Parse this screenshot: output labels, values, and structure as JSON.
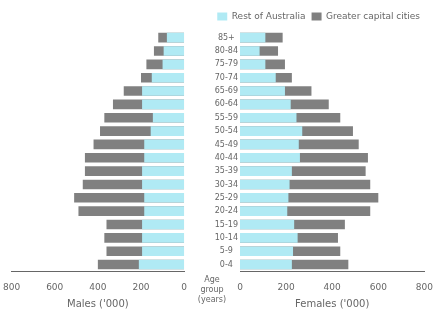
{
  "chart_data": [
    {
      "type": "bar",
      "orientation": "horizontal",
      "stacked": false,
      "categories": [
        "0-4",
        "5-9",
        "10-14",
        "15-19",
        "20-24",
        "25-29",
        "30-34",
        "35-39",
        "40-44",
        "45-49",
        "50-54",
        "55-59",
        "60-64",
        "65-69",
        "70-74",
        "75-79",
        "80-84",
        "85+"
      ],
      "series": [
        {
          "name": "Greater capital cities",
          "color": "#808080",
          "values": [
            400,
            360,
            370,
            360,
            490,
            510,
            470,
            460,
            460,
            420,
            390,
            370,
            330,
            280,
            200,
            175,
            140,
            120
          ]
        },
        {
          "name": "Rest of Australia",
          "color": "#b0eaf4",
          "values": [
            210,
            195,
            195,
            195,
            185,
            185,
            195,
            195,
            185,
            185,
            155,
            145,
            195,
            195,
            150,
            100,
            95,
            80
          ]
        }
      ],
      "xlabel": "Males ('000)",
      "xlim": [
        800,
        0
      ],
      "xticks": [
        800,
        600,
        400,
        200,
        0
      ],
      "grid": false,
      "tick_labels": "x"
    },
    {
      "type": "bar",
      "orientation": "horizontal",
      "stacked": false,
      "categories": [
        "0-4",
        "5-9",
        "10-14",
        "15-19",
        "20-24",
        "25-29",
        "30-34",
        "35-39",
        "40-44",
        "45-49",
        "50-54",
        "55-59",
        "60-64",
        "65-69",
        "70-74",
        "75-79",
        "80-84",
        "85+"
      ],
      "series": [
        {
          "name": "Greater capital cities",
          "color": "#808080",
          "values": [
            470,
            435,
            425,
            455,
            565,
            600,
            565,
            545,
            555,
            515,
            490,
            435,
            385,
            310,
            225,
            195,
            165,
            185
          ]
        },
        {
          "name": "Rest of Australia",
          "color": "#b0eaf4",
          "values": [
            225,
            230,
            250,
            235,
            205,
            210,
            215,
            225,
            260,
            255,
            270,
            245,
            220,
            195,
            155,
            110,
            85,
            110
          ]
        }
      ],
      "xlabel": "Females ('000)",
      "ylabel": "Age group\n(years)",
      "xlim": [
        0,
        800
      ],
      "xticks": [
        0,
        200,
        400,
        600,
        800
      ],
      "grid": false,
      "legend": "upper right"
    }
  ]
}
